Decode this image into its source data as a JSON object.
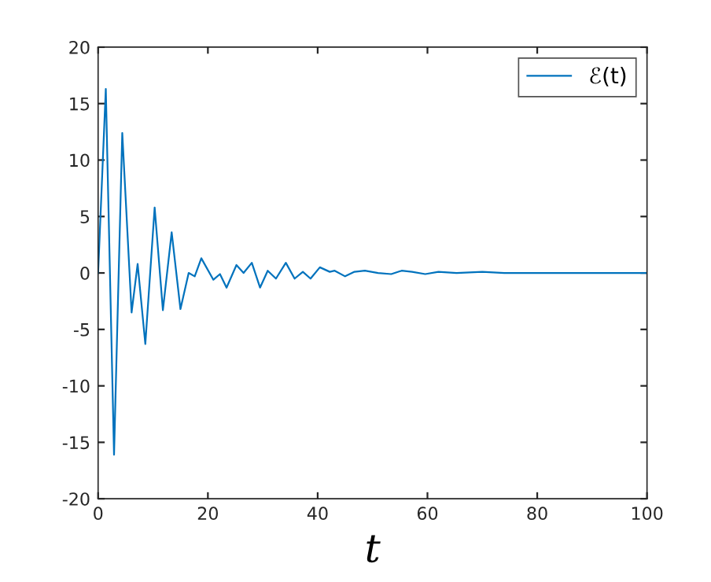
{
  "chart_data": {
    "type": "line",
    "xlabel": "t",
    "legend": "top right",
    "grid": false,
    "marker": "none",
    "line_style": "solid",
    "xlim": [
      0,
      100
    ],
    "xticks": [
      0,
      20,
      40,
      60,
      80,
      100
    ],
    "ylim": [
      -20,
      20
    ],
    "yticks": [
      -20,
      -15,
      -10,
      -5,
      0,
      5,
      10,
      15,
      20
    ],
    "series": [
      {
        "name": "ℰ(t)",
        "color": "#0072bd",
        "x": [
          0,
          1.4,
          2.9,
          4.4,
          6.1,
          7.2,
          8.6,
          10.3,
          11.8,
          13.4,
          15,
          16.5,
          17.6,
          18.8,
          21,
          22.2,
          23.4,
          25.2,
          26.5,
          28,
          29.5,
          30.9,
          32.4,
          34.2,
          35.8,
          37.3,
          38.7,
          40.4,
          42.2,
          43.1,
          45,
          46.7,
          48.6,
          51,
          53.4,
          55.3,
          57.2,
          59.6,
          62,
          65.3,
          70,
          74,
          84,
          100
        ],
        "values": [
          0,
          16.3,
          -16.1,
          12.4,
          -3.5,
          0.8,
          -6.3,
          5.8,
          -3.3,
          3.6,
          -3.2,
          0,
          -0.3,
          1.3,
          -0.6,
          -0.1,
          -1.3,
          0.7,
          0,
          0.9,
          -1.3,
          0.2,
          -0.5,
          0.9,
          -0.5,
          0.1,
          -0.5,
          0.5,
          0.1,
          0.2,
          -0.3,
          0.1,
          0.2,
          0,
          -0.1,
          0.2,
          0.1,
          -0.1,
          0.1,
          0,
          0.1,
          0,
          0,
          0
        ]
      }
    ]
  }
}
